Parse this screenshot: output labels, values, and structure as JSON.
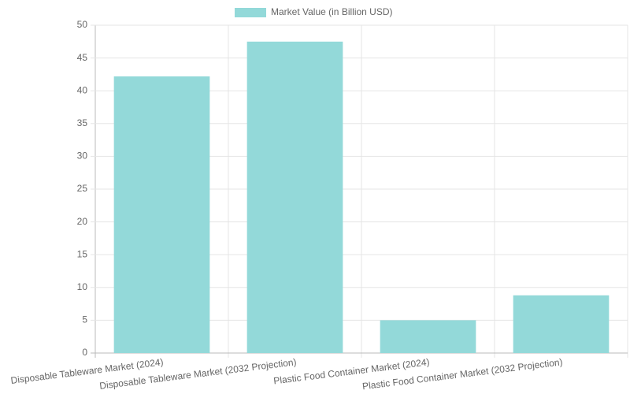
{
  "chart_data": {
    "type": "bar",
    "categories": [
      "Disposable Tableware Market (2024)",
      "Disposable Tableware Market (2032 Projection)",
      "Plastic Food Container Market (2024)",
      "Plastic Food Container Market (2032 Projection)"
    ],
    "series": [
      {
        "name": "Market Value (in Billion USD)",
        "color": "#93d9d9",
        "values": [
          42.2,
          47.5,
          5.0,
          8.8
        ]
      }
    ],
    "ylim": [
      0,
      50
    ],
    "yticks": [
      0,
      5,
      10,
      15,
      20,
      25,
      30,
      35,
      40,
      45,
      50
    ],
    "grid": true,
    "legend": "top"
  }
}
